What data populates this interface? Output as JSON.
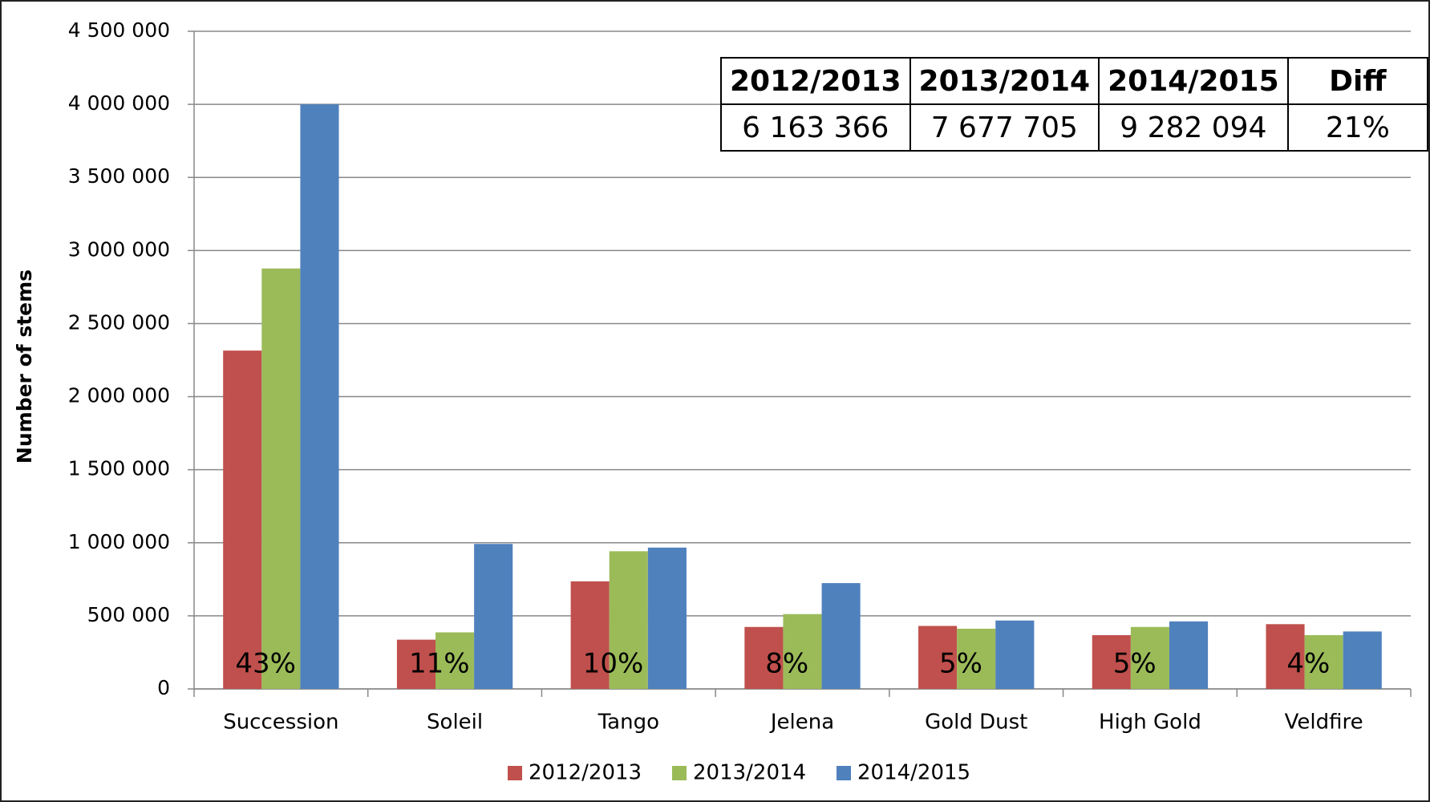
{
  "chart_data": {
    "type": "bar",
    "y_label": "Number of stems",
    "categories": [
      "Succession",
      "Soleil",
      "Tango",
      "Jelena",
      "Gold Dust",
      "High Gold",
      "Veldfire"
    ],
    "series": [
      {
        "name": "2012/2013",
        "color": "#c0504d",
        "values": [
          2315000,
          337000,
          736000,
          424000,
          431000,
          368000,
          443000
        ]
      },
      {
        "name": "2013/2014",
        "color": "#9bbb59",
        "values": [
          2877000,
          387000,
          942000,
          512000,
          412000,
          424000,
          368000
        ]
      },
      {
        "name": "2014/2015",
        "color": "#4f81bd",
        "values": [
          4000000,
          992000,
          967000,
          724000,
          468000,
          462000,
          393000
        ]
      }
    ],
    "shares": {
      "values": [
        43,
        11,
        10,
        8,
        5,
        5,
        4
      ],
      "value_labels": [
        "43%",
        "11%",
        "10%",
        "8%",
        "5%",
        "5%",
        "4%"
      ]
    },
    "ylim": [
      0,
      4500000
    ],
    "yticks": [
      {
        "value": 0,
        "label": "0"
      },
      {
        "value": 500000,
        "label": "500 000"
      },
      {
        "value": 1000000,
        "label": "1 000 000"
      },
      {
        "value": 1500000,
        "label": "1 500 000"
      },
      {
        "value": 2000000,
        "label": "2 000 000"
      },
      {
        "value": 2500000,
        "label": "2 500 000"
      },
      {
        "value": 3000000,
        "label": "3 000 000"
      },
      {
        "value": 3500000,
        "label": "3 500 000"
      },
      {
        "value": 4000000,
        "label": "4 000 000"
      },
      {
        "value": 4500000,
        "label": "4 500 000"
      }
    ],
    "grid": true,
    "legend": "bottom",
    "table": {
      "header": [
        "2012/2013",
        "2013/2014",
        "2014/2015",
        "Diff"
      ],
      "rows": [
        [
          "6 163 366",
          "7 677 705",
          "9 282 094",
          "21%"
        ]
      ]
    }
  }
}
